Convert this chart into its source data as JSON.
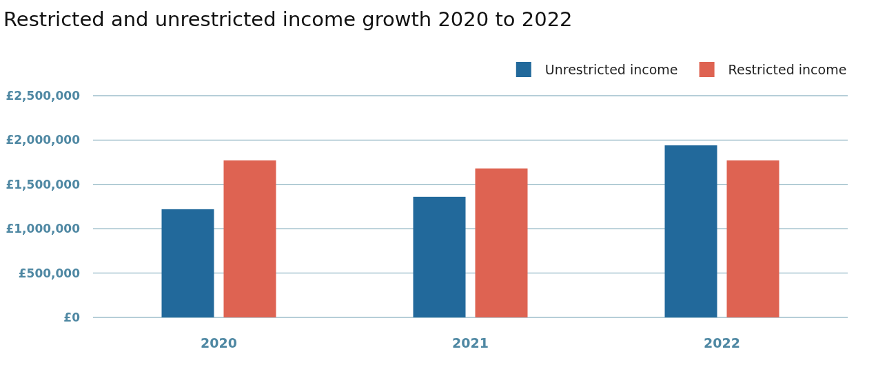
{
  "chart_data": {
    "type": "bar",
    "title": "Restricted and unrestricted income growth 2020 to 2022",
    "categories": [
      "2020",
      "2021",
      "2022"
    ],
    "series": [
      {
        "name": "Unrestricted income",
        "color": "#22699b",
        "values": [
          1220000,
          1360000,
          1940000
        ]
      },
      {
        "name": "Restricted income",
        "color": "#de6352",
        "values": [
          1770000,
          1680000,
          1770000
        ]
      }
    ],
    "ylim": [
      0,
      2500000
    ],
    "yticks": [
      {
        "value": 0,
        "label": "£0"
      },
      {
        "value": 500000,
        "label": "£500,000"
      },
      {
        "value": 1000000,
        "label": "£1,000,000"
      },
      {
        "value": 1500000,
        "label": "£1,500,000"
      },
      {
        "value": 2000000,
        "label": "£2,000,000"
      },
      {
        "value": 2500000,
        "label": "£2,500,000"
      }
    ],
    "grid": "y",
    "legend": "top right"
  }
}
